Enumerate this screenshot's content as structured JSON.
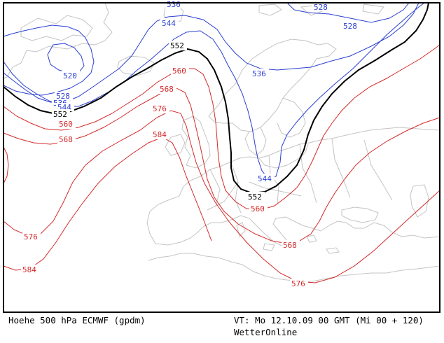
{
  "footer": {
    "title": "Hoehe 500 hPa ECMWF (gpdm)",
    "valid_time": "VT: Mo 12.10.09 00 GMT (Mi 00 + 120)",
    "source": "WetterOnline"
  },
  "colors": {
    "blue_isoline": "#2a3fd0",
    "black_isoline": "#000000",
    "red_isoline": "#d42a2a",
    "coastline": "#c4c4c4",
    "frame": "#000000"
  },
  "contours": {
    "c520": "520",
    "c528": "528",
    "c536": "536",
    "c544": "544",
    "c552": "552",
    "c560": "560",
    "c568": "568",
    "c576": "576",
    "c584": "584"
  }
}
